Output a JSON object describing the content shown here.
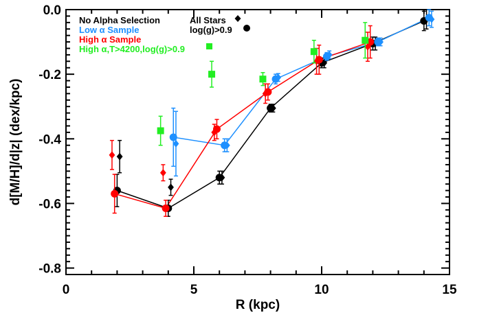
{
  "chart_data": {
    "type": "scatter",
    "title": "",
    "xlabel": "R (kpc)",
    "ylabel": "d[M/H]/d|z|  (dex/kpc)",
    "xlim": [
      0,
      15
    ],
    "ylim": [
      -0.82,
      0.0
    ],
    "x_ticks": [
      0,
      5,
      10,
      15
    ],
    "x_tick_labels": [
      "0",
      "5",
      "10",
      "15"
    ],
    "y_ticks": [
      0.0,
      -0.2,
      -0.4,
      -0.6,
      -0.8
    ],
    "y_tick_labels": [
      "0.0",
      "-0.2",
      "-0.4",
      "-0.6",
      "-0.8"
    ],
    "grid": false,
    "legend": {
      "placement": "top-left",
      "sample_entries": [
        {
          "label": "No Alpha Selection",
          "color": "#000000"
        },
        {
          "label": "Low α Sample",
          "color": "#1e90ff"
        },
        {
          "label": "High α Sample",
          "color": "#ff0000"
        },
        {
          "label": "High α,T>4200,log(g)>0.9",
          "color": "#22ee22"
        }
      ],
      "marker_entries": [
        {
          "label": "All Stars",
          "marker": "diamond"
        },
        {
          "label": "log(g)>0.9",
          "marker": "circle"
        }
      ]
    },
    "series": [
      {
        "group": "No Alpha Selection",
        "subset": "All Stars",
        "marker": "diamond",
        "color": "#000000",
        "connected": false,
        "points": [
          {
            "x": 2.1,
            "y": -0.455,
            "err": 0.05
          },
          {
            "x": 4.1,
            "y": -0.55,
            "err": 0.025
          },
          {
            "x": 6.1,
            "y": -0.52,
            "err": 0.02
          },
          {
            "x": 8.1,
            "y": -0.305,
            "err": 0.012
          },
          {
            "x": 10.1,
            "y": -0.165,
            "err": 0.015
          },
          {
            "x": 12.1,
            "y": -0.105,
            "err": 0.02
          },
          {
            "x": 14.1,
            "y": -0.03,
            "err": 0.03
          }
        ]
      },
      {
        "group": "No Alpha Selection",
        "subset": "log(g)>0.9",
        "marker": "circle",
        "color": "#000000",
        "connected": true,
        "points": [
          {
            "x": 2.0,
            "y": -0.56,
            "err": 0.05
          },
          {
            "x": 4.0,
            "y": -0.615,
            "err": 0.025
          },
          {
            "x": 6.0,
            "y": -0.52,
            "err": 0.02
          },
          {
            "x": 8.0,
            "y": -0.305,
            "err": 0.012
          },
          {
            "x": 10.0,
            "y": -0.165,
            "err": 0.015
          },
          {
            "x": 12.0,
            "y": -0.105,
            "err": 0.02
          },
          {
            "x": 14.0,
            "y": -0.035,
            "err": 0.03
          }
        ]
      },
      {
        "group": "Low α Sample",
        "subset": "All Stars",
        "marker": "diamond",
        "color": "#1e90ff",
        "connected": false,
        "points": [
          {
            "x": 4.3,
            "y": -0.415,
            "err": 0.1
          },
          {
            "x": 6.3,
            "y": -0.42,
            "err": 0.02
          },
          {
            "x": 8.3,
            "y": -0.21,
            "err": 0.012
          },
          {
            "x": 10.3,
            "y": -0.14,
            "err": 0.012
          },
          {
            "x": 12.3,
            "y": -0.1,
            "err": 0.012
          },
          {
            "x": 14.3,
            "y": -0.03,
            "err": 0.025
          }
        ]
      },
      {
        "group": "Low α Sample",
        "subset": "log(g)>0.9",
        "marker": "circle",
        "color": "#1e90ff",
        "connected": true,
        "points": [
          {
            "x": 4.2,
            "y": -0.395,
            "err": 0.09
          },
          {
            "x": 6.2,
            "y": -0.42,
            "err": 0.02
          },
          {
            "x": 8.2,
            "y": -0.215,
            "err": 0.015
          },
          {
            "x": 10.2,
            "y": -0.145,
            "err": 0.012
          },
          {
            "x": 12.2,
            "y": -0.1,
            "err": 0.012
          },
          {
            "x": 14.2,
            "y": -0.025,
            "err": 0.025
          }
        ]
      },
      {
        "group": "High α Sample",
        "subset": "All Stars",
        "marker": "diamond",
        "color": "#ff0000",
        "connected": false,
        "points": [
          {
            "x": 1.8,
            "y": -0.45,
            "err": 0.045
          },
          {
            "x": 3.8,
            "y": -0.505,
            "err": 0.025
          },
          {
            "x": 5.8,
            "y": -0.38,
            "err": 0.025
          },
          {
            "x": 7.8,
            "y": -0.26,
            "err": 0.03
          },
          {
            "x": 9.8,
            "y": -0.16,
            "err": 0.04
          },
          {
            "x": 11.8,
            "y": -0.115,
            "err": 0.045
          }
        ]
      },
      {
        "group": "High α Sample",
        "subset": "log(g)>0.9",
        "marker": "circle",
        "color": "#ff0000",
        "connected": true,
        "points": [
          {
            "x": 1.9,
            "y": -0.57,
            "err": 0.06
          },
          {
            "x": 3.9,
            "y": -0.615,
            "err": 0.025
          },
          {
            "x": 5.9,
            "y": -0.37,
            "err": 0.03
          },
          {
            "x": 7.9,
            "y": -0.255,
            "err": 0.025
          },
          {
            "x": 9.9,
            "y": -0.155,
            "err": 0.045
          },
          {
            "x": 11.9,
            "y": -0.1,
            "err": 0.05
          }
        ]
      },
      {
        "group": "High α,T>4200,log(g)>0.9",
        "subset": "",
        "marker": "square",
        "color": "#22ee22",
        "connected": false,
        "points": [
          {
            "x": 3.7,
            "y": -0.375,
            "err": 0.045
          },
          {
            "x": 5.7,
            "y": -0.2,
            "err": 0.04
          },
          {
            "x": 7.7,
            "y": -0.215,
            "err": 0.02
          },
          {
            "x": 9.7,
            "y": -0.13,
            "err": 0.035
          },
          {
            "x": 11.7,
            "y": -0.095,
            "err": 0.055
          }
        ]
      }
    ]
  }
}
